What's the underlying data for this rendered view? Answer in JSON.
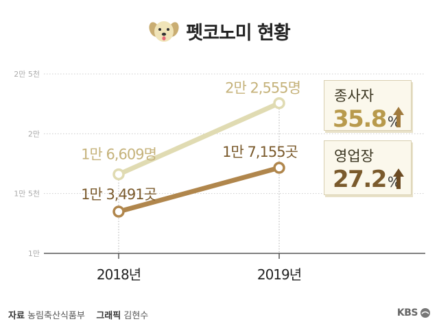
{
  "title": "펫코노미 현황",
  "icons": {
    "title_icon": "dog-face-icon",
    "arrow_icon": "up-arrow-icon",
    "brand_icon": "kbs-logo-icon"
  },
  "colors": {
    "light_series": "#e0dbb2",
    "light_label": "#c5b27a",
    "dark_series": "#b0864c",
    "dark_label": "#7a5a2c",
    "grid": "#cccccc",
    "axis": "#555555"
  },
  "chart_data": {
    "type": "line",
    "categories": [
      "2018년",
      "2019년"
    ],
    "x": [
      2018,
      2019
    ],
    "ylim": [
      10000,
      25000
    ],
    "yticks": [
      10000,
      15000,
      20000,
      25000
    ],
    "ytick_labels": [
      "1만",
      "1만 5천",
      "2만",
      "2만 5천"
    ],
    "series": [
      {
        "name": "종사자",
        "values": [
          16609,
          22555
        ],
        "point_labels": [
          "1만 6,609명",
          "2만 2,555명"
        ]
      },
      {
        "name": "영업장",
        "values": [
          13491,
          17155
        ],
        "point_labels": [
          "1만 3,491곳",
          "1만 7,155곳"
        ]
      }
    ],
    "annotations": [
      {
        "label": "종사자",
        "value": "35.8",
        "unit": "%"
      },
      {
        "label": "영업장",
        "value": "27.2",
        "unit": "%"
      }
    ]
  },
  "footer": {
    "source_label": "자료",
    "source": "농림축산식품부",
    "graphic_label": "그래픽",
    "graphic": "김현수",
    "brand": "KBS"
  }
}
